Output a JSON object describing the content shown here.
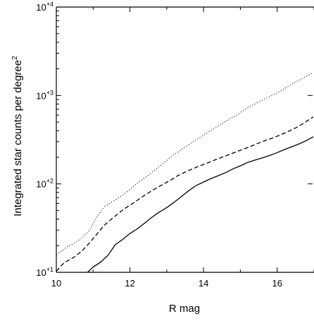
{
  "chart_data": {
    "type": "line",
    "title": "",
    "xlabel": "R mag",
    "ylabel": "Integrated star counts per degree",
    "ylabel_superscript": "2",
    "x_scale": "linear",
    "y_scale": "log",
    "xlim": [
      10,
      17
    ],
    "ylim": [
      10,
      10000
    ],
    "x_ticks": [
      10,
      12,
      14,
      16
    ],
    "x_tick_labels": [
      "10",
      "12",
      "14",
      "16"
    ],
    "y_ticks": [
      10,
      100,
      1000,
      10000
    ],
    "y_tick_labels": [
      {
        "base": "10",
        "exp": "+1"
      },
      {
        "base": "10",
        "exp": "+2"
      },
      {
        "base": "10",
        "exp": "+3"
      },
      {
        "base": "10",
        "exp": "+4"
      }
    ],
    "grid": false,
    "legend": "none",
    "series": [
      {
        "style": "dotted",
        "x": [
          10.0,
          10.3,
          10.5,
          10.7,
          10.9,
          11.1,
          11.3,
          11.5,
          11.7,
          11.9,
          12.1,
          12.3,
          12.5,
          12.7,
          12.9,
          13.1,
          13.3,
          13.5,
          13.7,
          13.9,
          14.1,
          14.3,
          14.5,
          14.7,
          14.9,
          15.1,
          15.3,
          15.5,
          15.7,
          15.9,
          16.1,
          16.3,
          16.5,
          16.7,
          17.0
        ],
        "y": [
          15.7,
          19.5,
          21.5,
          24.5,
          30,
          42,
          55,
          62,
          70,
          80,
          94,
          110,
          125,
          146,
          170,
          200,
          228,
          262,
          296,
          336,
          378,
          425,
          480,
          540,
          600,
          685,
          765,
          845,
          930,
          1020,
          1130,
          1270,
          1420,
          1570,
          1830
        ]
      },
      {
        "style": "dashed",
        "x": [
          10.0,
          10.2,
          10.5,
          10.7,
          10.9,
          11.1,
          11.3,
          11.5,
          11.7,
          11.9,
          12.1,
          12.3,
          12.5,
          12.7,
          12.9,
          13.1,
          13.3,
          13.5,
          13.7,
          13.9,
          14.1,
          14.3,
          14.5,
          14.7,
          14.9,
          15.1,
          15.3,
          15.5,
          15.7,
          15.9,
          16.1,
          16.3,
          16.5,
          16.7,
          17.0
        ],
        "y": [
          10.3,
          12.7,
          15,
          17.5,
          21.5,
          27,
          34,
          40,
          47,
          54,
          61,
          70,
          79,
          89,
          99,
          110,
          124,
          136,
          148,
          160,
          172,
          186,
          200,
          215,
          232,
          248,
          268,
          290,
          312,
          333,
          360,
          392,
          430,
          480,
          580
        ]
      },
      {
        "style": "solid",
        "x": [
          10.85,
          11.0,
          11.2,
          11.4,
          11.6,
          11.8,
          12.0,
          12.2,
          12.4,
          12.6,
          12.8,
          13.0,
          13.2,
          13.4,
          13.6,
          13.8,
          14.0,
          14.2,
          14.4,
          14.6,
          14.8,
          15.0,
          15.2,
          15.4,
          15.6,
          15.8,
          16.0,
          16.2,
          16.4,
          16.6,
          16.8,
          17.0
        ],
        "y": [
          10,
          11.5,
          13,
          15.5,
          20.5,
          23.5,
          27.5,
          31,
          36,
          42,
          48,
          54,
          62,
          72,
          84,
          96,
          105,
          115,
          124,
          134,
          148,
          160,
          175,
          186,
          197,
          210,
          226,
          245,
          263,
          284,
          310,
          345
        ]
      }
    ]
  }
}
